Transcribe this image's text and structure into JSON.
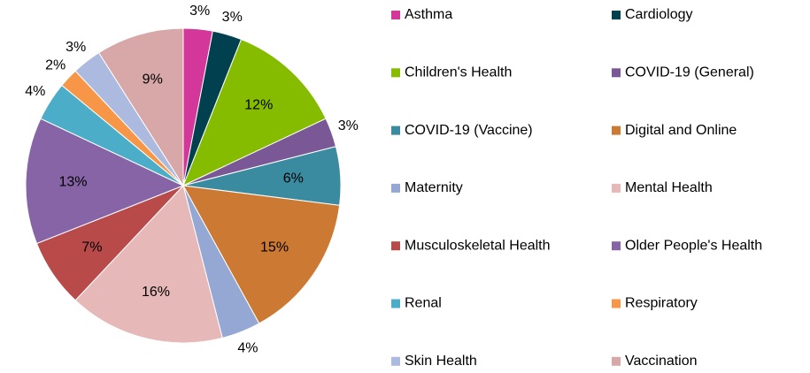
{
  "chart_data": {
    "type": "pie",
    "categories": [
      "Asthma",
      "Cardiology",
      "Children's Health",
      "COVID-19 (General)",
      "COVID-19 (Vaccine)",
      "Digital and Online",
      "Maternity",
      "Mental Health",
      "Musculoskeletal Health",
      "Older People's Health",
      "Renal",
      "Respiratory",
      "Skin Health",
      "Vaccination"
    ],
    "values": [
      3,
      3,
      12,
      3,
      6,
      15,
      4,
      16,
      7,
      13,
      4,
      2,
      3,
      9
    ],
    "value_labels": [
      "3%",
      "3%",
      "12%",
      "3%",
      "6%",
      "15%",
      "4%",
      "16%",
      "7%",
      "13%",
      "4%",
      "2%",
      "3%",
      "9%"
    ],
    "colors": [
      "#d4379a",
      "#00404f",
      "#86bc00",
      "#7a5896",
      "#3a8ba0",
      "#cc7a33",
      "#95a8d3",
      "#e6b8b8",
      "#b84a4a",
      "#8764a6",
      "#4badc8",
      "#f79646",
      "#abbade",
      "#d8a7a7"
    ],
    "legend": "right"
  }
}
